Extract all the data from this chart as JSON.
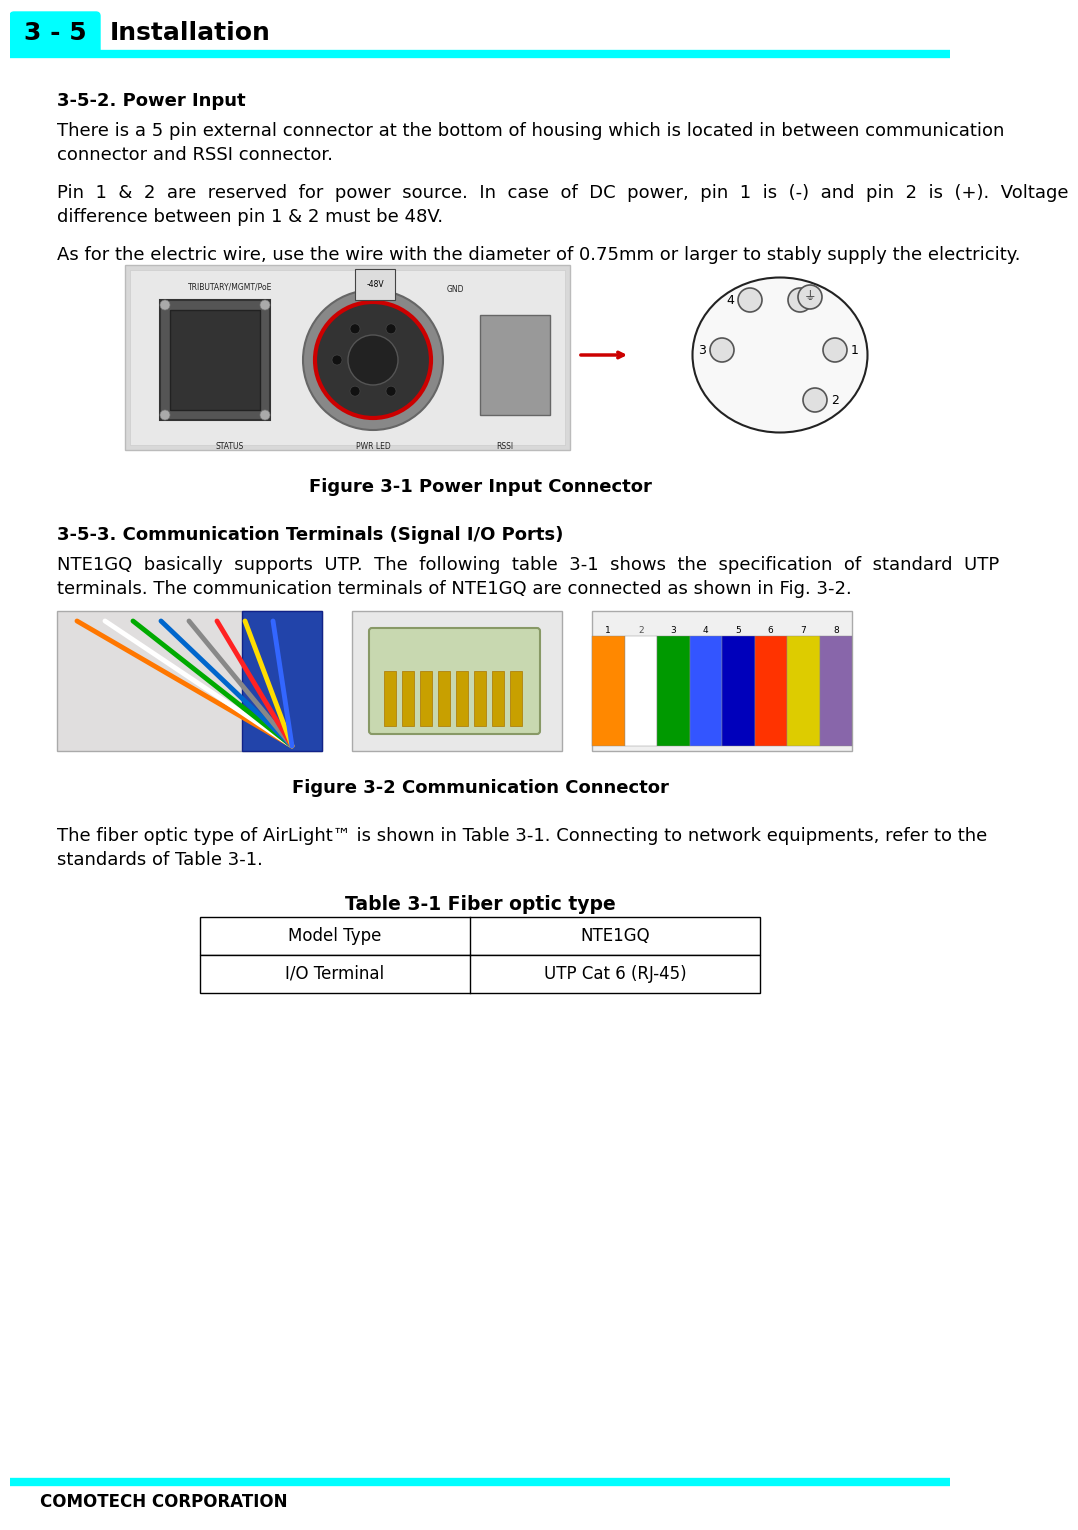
{
  "page_width": 9.4,
  "page_height": 15.1,
  "bg_color": "#ffffff",
  "cyan_color": "#00ffff",
  "header_text": "3 - 5",
  "header_label": "Installation",
  "footer_text": "COMOTECH CORPORATION",
  "section1_title": "3-5-2. Power Input",
  "section1_line1": "There is a 5 pin external connector at the bottom of housing which is located in between communication",
  "section1_line2": "connector and RSSI connector.",
  "section1_line3": "Pin  1  &  2  are  reserved  for  power  source.  In  case  of  DC  power,  pin  1  is  (-)  and  pin  2  is  (+).  Voltage",
  "section1_line4": "difference between pin 1 & 2 must be 48V.",
  "section1_line5": "As for the electric wire, use the wire with the diameter of 0.75mm or larger to stably supply the electricity.",
  "fig1_caption": "Figure 3-1 Power Input Connector",
  "section2_title": "3-5-3. Communication Terminals (Signal I/O Ports)",
  "section2_line1": "NTE1GQ  basically  supports  UTP.  The  following  table  3-1  shows  the  specification  of  standard  UTP",
  "section2_line2": "terminals. The communication terminals of NTE1GQ are connected as shown in Fig. 3-2.",
  "fig2_caption": "Figure 3-2 Communication Connector",
  "section3_line1": "The fiber optic type of AirLight™ is shown in Table 3-1. Connecting to network equipments, refer to the",
  "section3_line2": "standards of Table 3-1.",
  "table_title": "Table 3-1 Fiber optic type",
  "table_col1_header": "Model Type",
  "table_col2_header": "NTE1GQ",
  "table_col1_row1": "I/O Terminal",
  "table_col2_row1": "UTP Cat 6 (RJ-45)",
  "body_fs": 13,
  "title_fs": 13,
  "header_fs": 18
}
